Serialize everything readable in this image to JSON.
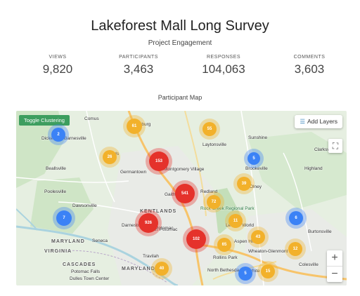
{
  "header": {
    "title": "Lakeforest Mall Long Survey",
    "subtitle": "Project Engagement"
  },
  "stats": [
    {
      "label": "VIEWS",
      "value": "9,820"
    },
    {
      "label": "PARTICIPANTS",
      "value": "3,463"
    },
    {
      "label": "RESPONSES",
      "value": "104,063"
    },
    {
      "label": "COMMENTS",
      "value": "3,603"
    }
  ],
  "map": {
    "title": "Participant Map",
    "toggle_label": "Toggle Clustering",
    "add_layers_label": "Add Layers",
    "zoom_in": "+",
    "zoom_out": "−",
    "clusters": [
      {
        "label": "61",
        "color": "#f2b12b"
      },
      {
        "label": "55",
        "color": "#f2b12b"
      },
      {
        "label": "2",
        "color": "#3b82f6"
      },
      {
        "label": "26",
        "color": "#f2b12b"
      },
      {
        "label": "153",
        "color": "#e5322b"
      },
      {
        "label": "5",
        "color": "#3b82f6"
      },
      {
        "label": "39",
        "color": "#f2b12b"
      },
      {
        "label": "541",
        "color": "#e5322b"
      },
      {
        "label": "72",
        "color": "#f2b12b"
      },
      {
        "label": "7",
        "color": "#3b82f6"
      },
      {
        "label": "926",
        "color": "#e5322b"
      },
      {
        "label": "11",
        "color": "#f2b12b"
      },
      {
        "label": "6",
        "color": "#3b82f6"
      },
      {
        "label": "43",
        "color": "#f2b12b"
      },
      {
        "label": "102",
        "color": "#e5322b"
      },
      {
        "label": "65",
        "color": "#f2b12b"
      },
      {
        "label": "12",
        "color": "#f2b12b"
      },
      {
        "label": "40",
        "color": "#f2b12b"
      },
      {
        "label": "5",
        "color": "#3b82f6"
      },
      {
        "label": "15",
        "color": "#f2b12b"
      }
    ],
    "places": [
      "Comus",
      "Clarksburg",
      "Laytonsville",
      "Sunshine",
      "Dickerson",
      "Barnesville",
      "Boyds",
      "Brookeville",
      "Highland",
      "Clarksv",
      "Beallsville",
      "Germantown",
      "Montgomery Village",
      "Gaithersburg",
      "Redland",
      "Olney",
      "Poolesville",
      "Dawsonville",
      "KENTLANDS",
      "Rock Creek Regional Park",
      "Darnestown",
      "North Potomac",
      "Potomac",
      "Leisure World",
      "Aspen Hill",
      "Burtonsville",
      "MARYLAND",
      "VIRGINIA",
      "Seneca",
      "Wheaton-Glenmont",
      "CASCADES",
      "Potomac Falls",
      "Travilah",
      "Rollins Park",
      "Dulles Town Center",
      "North Bethesda",
      "White Oak",
      "Colesville",
      "MARYLAND"
    ]
  }
}
